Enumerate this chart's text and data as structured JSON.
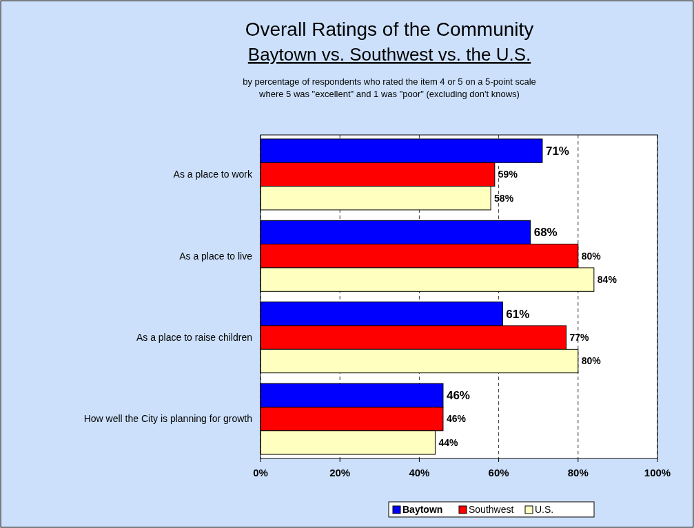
{
  "chart_data": {
    "type": "bar",
    "orientation": "horizontal",
    "title": "Overall Ratings of the Community",
    "subtitle": "Baytown vs. Southwest vs. the U.S.",
    "annotations": [
      "by percentage of respondents who rated the item 4 or 5 on a 5-point scale",
      "where 5 was \"excellent\" and 1 was \"poor\" (excluding don't knows)"
    ],
    "categories": [
      "As a place to work",
      "As a place to live",
      "As a place to raise children",
      "How well the City is planning for growth"
    ],
    "series": [
      {
        "name": "Baytown",
        "color": "#0000ff",
        "values": [
          71,
          68,
          61,
          46
        ],
        "value_labels": [
          "71%",
          "68%",
          "61%",
          "46%"
        ]
      },
      {
        "name": "Southwest",
        "color": "#ff0000",
        "values": [
          59,
          80,
          77,
          46
        ],
        "value_labels": [
          "59%",
          "80%",
          "77%",
          "46%"
        ]
      },
      {
        "name": "U.S.",
        "color": "#ffffc0",
        "values": [
          58,
          84,
          80,
          44
        ],
        "value_labels": [
          "58%",
          "84%",
          "80%",
          "44%"
        ]
      }
    ],
    "xlim": [
      0,
      100
    ],
    "xticks": [
      {
        "value": 0,
        "label": "0%"
      },
      {
        "value": 20,
        "label": "20%"
      },
      {
        "value": 40,
        "label": "40%"
      },
      {
        "value": 60,
        "label": "60%"
      },
      {
        "value": 80,
        "label": "80%"
      },
      {
        "value": 100,
        "label": "100%"
      }
    ],
    "grid": "x",
    "legend": "bottom"
  }
}
